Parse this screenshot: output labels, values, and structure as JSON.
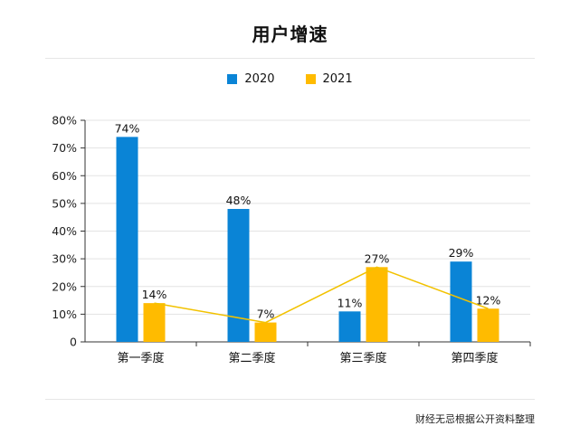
{
  "chart_data": {
    "type": "bar",
    "title": "用户增速",
    "categories": [
      "第一季度",
      "第二季度",
      "第三季度",
      "第四季度"
    ],
    "series": [
      {
        "name": "2020",
        "values": [
          74,
          48,
          11,
          29
        ],
        "labels": [
          "74%",
          "48%",
          "11%",
          "29%"
        ],
        "color": "#0a84d6"
      },
      {
        "name": "2021",
        "values": [
          14,
          7,
          27,
          12
        ],
        "labels": [
          "14%",
          "7%",
          "27%",
          "12%"
        ],
        "color": "#ffbb00"
      }
    ],
    "line_overlay": {
      "series": "2021",
      "color": "#f2c200"
    },
    "y_ticks": [
      0,
      10,
      20,
      30,
      40,
      50,
      60,
      70,
      80
    ],
    "y_tick_labels": [
      "0",
      "10%",
      "20%",
      "30%",
      "40%",
      "50%",
      "60%",
      "70%",
      "80%"
    ],
    "ylim": [
      0,
      80
    ],
    "grid": true,
    "legend_position": "top-center"
  },
  "source": "财经无忌根据公开资料整理"
}
